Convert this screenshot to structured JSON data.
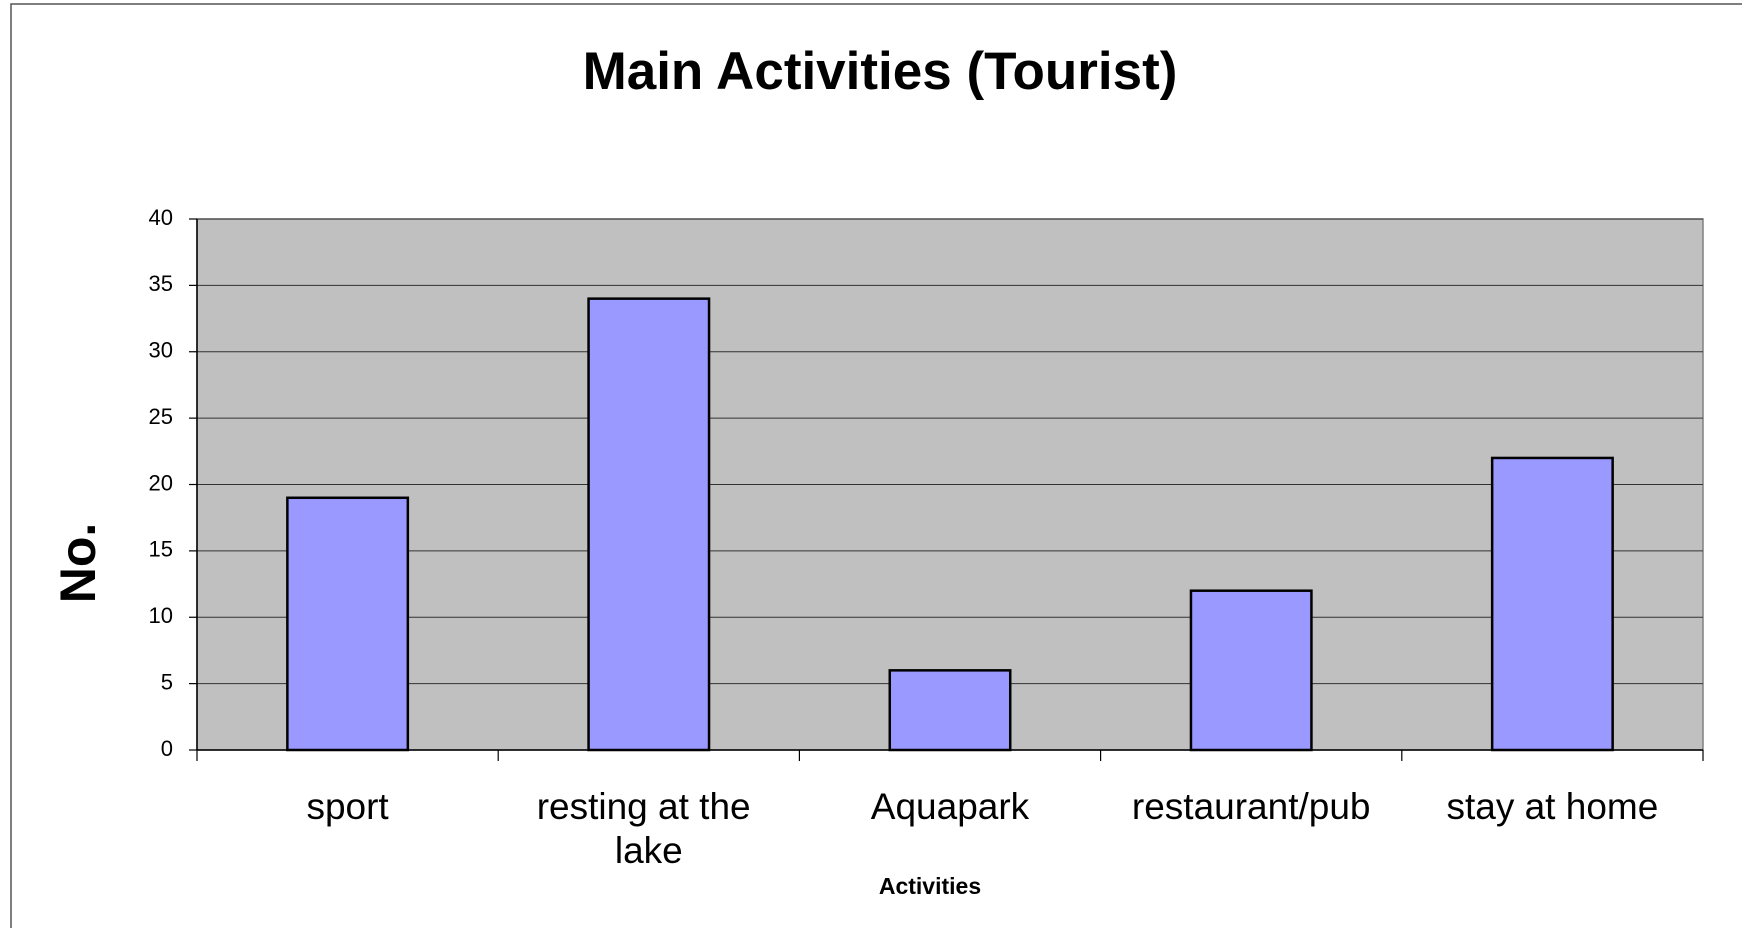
{
  "chart_data": {
    "type": "bar",
    "title": "Main Activities (Tourist)",
    "categories": [
      "sport",
      "resting at the lake",
      "Aquapark",
      "restaurant/pub",
      "stay at home"
    ],
    "values": [
      19,
      34,
      6,
      12,
      22
    ],
    "color": "#9999ff",
    "xlabel": "Activities",
    "ylabel": "No.",
    "ylim": [
      0,
      40
    ],
    "yticks": [
      0,
      5,
      10,
      15,
      20,
      25,
      30,
      35,
      40
    ],
    "grid": true
  }
}
